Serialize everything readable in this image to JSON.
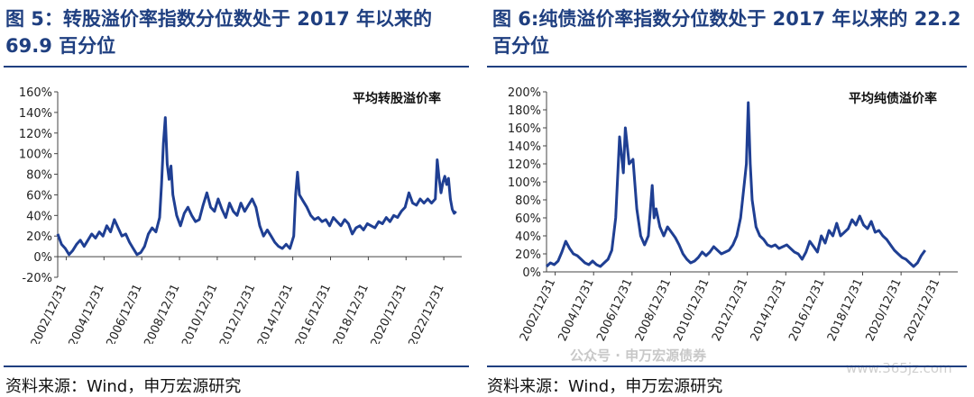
{
  "left": {
    "title_line1": "图 5：转股溢价率指数分位数处于 2017 年以来的",
    "title_line2": "69.9 百分位",
    "source": "资料来源：Wind，申万宏源研究"
  },
  "right": {
    "title_line1": "图 6:纯债溢价率指数分位数处于 2017 年以来的 22.2",
    "title_line2": "百分位",
    "source": "资料来源：Wind，申万宏源研究"
  },
  "watermark": {
    "text": "公众号 · 申万宏源债券",
    "site": "www.365jz.com"
  },
  "chart_data": [
    {
      "type": "line",
      "legend": "平均转股溢价率",
      "ylim": [
        -20,
        160
      ],
      "yticks": [
        -20,
        0,
        20,
        40,
        60,
        80,
        100,
        120,
        140,
        160
      ],
      "ytick_labels": [
        "-20%",
        "0%",
        "20%",
        "40%",
        "60%",
        "80%",
        "100%",
        "120%",
        "140%",
        "160%"
      ],
      "xlim": [
        2002.5,
        2023.9
      ],
      "xtick_labels": [
        "2002/12/31",
        "2004/12/31",
        "2006/12/31",
        "2008/12/31",
        "2010/12/31",
        "2012/12/31",
        "2014/12/31",
        "2016/12/31",
        "2018/12/31",
        "2020/12/31",
        "2022/12/31"
      ],
      "color": "#1f3f93",
      "series": [
        {
          "values": [
            [
              2002.5,
              22
            ],
            [
              2002.7,
              12
            ],
            [
              2002.9,
              8
            ],
            [
              2003.1,
              2
            ],
            [
              2003.3,
              6
            ],
            [
              2003.5,
              12
            ],
            [
              2003.7,
              16
            ],
            [
              2003.9,
              10
            ],
            [
              2004.1,
              16
            ],
            [
              2004.3,
              22
            ],
            [
              2004.5,
              18
            ],
            [
              2004.7,
              24
            ],
            [
              2004.9,
              20
            ],
            [
              2005.1,
              30
            ],
            [
              2005.3,
              24
            ],
            [
              2005.5,
              36
            ],
            [
              2005.7,
              28
            ],
            [
              2005.9,
              20
            ],
            [
              2006.1,
              22
            ],
            [
              2006.3,
              14
            ],
            [
              2006.5,
              8
            ],
            [
              2006.7,
              2
            ],
            [
              2006.9,
              4
            ],
            [
              2007.1,
              10
            ],
            [
              2007.3,
              22
            ],
            [
              2007.5,
              28
            ],
            [
              2007.7,
              24
            ],
            [
              2007.9,
              38
            ],
            [
              2008.0,
              70
            ],
            [
              2008.1,
              110
            ],
            [
              2008.2,
              135
            ],
            [
              2008.3,
              90
            ],
            [
              2008.4,
              75
            ],
            [
              2008.5,
              88
            ],
            [
              2008.6,
              60
            ],
            [
              2008.8,
              40
            ],
            [
              2009.0,
              30
            ],
            [
              2009.2,
              42
            ],
            [
              2009.4,
              48
            ],
            [
              2009.6,
              40
            ],
            [
              2009.8,
              34
            ],
            [
              2010.0,
              36
            ],
            [
              2010.2,
              50
            ],
            [
              2010.4,
              62
            ],
            [
              2010.6,
              48
            ],
            [
              2010.8,
              44
            ],
            [
              2011.0,
              56
            ],
            [
              2011.2,
              46
            ],
            [
              2011.4,
              38
            ],
            [
              2011.6,
              52
            ],
            [
              2011.8,
              44
            ],
            [
              2012.0,
              40
            ],
            [
              2012.2,
              52
            ],
            [
              2012.4,
              44
            ],
            [
              2012.6,
              50
            ],
            [
              2012.8,
              56
            ],
            [
              2013.0,
              48
            ],
            [
              2013.2,
              30
            ],
            [
              2013.4,
              20
            ],
            [
              2013.6,
              26
            ],
            [
              2013.8,
              20
            ],
            [
              2014.0,
              14
            ],
            [
              2014.2,
              10
            ],
            [
              2014.4,
              8
            ],
            [
              2014.6,
              12
            ],
            [
              2014.8,
              8
            ],
            [
              2015.0,
              20
            ],
            [
              2015.1,
              60
            ],
            [
              2015.2,
              82
            ],
            [
              2015.3,
              60
            ],
            [
              2015.5,
              54
            ],
            [
              2015.7,
              48
            ],
            [
              2015.9,
              40
            ],
            [
              2016.1,
              36
            ],
            [
              2016.3,
              38
            ],
            [
              2016.5,
              34
            ],
            [
              2016.7,
              36
            ],
            [
              2016.9,
              30
            ],
            [
              2017.1,
              38
            ],
            [
              2017.3,
              34
            ],
            [
              2017.5,
              30
            ],
            [
              2017.7,
              36
            ],
            [
              2017.9,
              32
            ],
            [
              2018.1,
              22
            ],
            [
              2018.3,
              28
            ],
            [
              2018.5,
              30
            ],
            [
              2018.7,
              26
            ],
            [
              2018.9,
              32
            ],
            [
              2019.1,
              30
            ],
            [
              2019.3,
              28
            ],
            [
              2019.5,
              34
            ],
            [
              2019.7,
              32
            ],
            [
              2019.9,
              38
            ],
            [
              2020.1,
              34
            ],
            [
              2020.3,
              40
            ],
            [
              2020.5,
              38
            ],
            [
              2020.7,
              44
            ],
            [
              2020.9,
              48
            ],
            [
              2021.1,
              62
            ],
            [
              2021.3,
              52
            ],
            [
              2021.5,
              50
            ],
            [
              2021.7,
              56
            ],
            [
              2021.9,
              52
            ],
            [
              2022.1,
              56
            ],
            [
              2022.3,
              52
            ],
            [
              2022.5,
              56
            ],
            [
              2022.6,
              94
            ],
            [
              2022.7,
              76
            ],
            [
              2022.8,
              62
            ],
            [
              2022.9,
              72
            ],
            [
              2023.0,
              78
            ],
            [
              2023.1,
              70
            ],
            [
              2023.2,
              76
            ],
            [
              2023.3,
              56
            ],
            [
              2023.4,
              46
            ],
            [
              2023.5,
              42
            ],
            [
              2023.6,
              44
            ]
          ]
        }
      ]
    },
    {
      "type": "line",
      "legend": "平均纯债溢价率",
      "ylim": [
        0,
        200
      ],
      "yticks": [
        0,
        20,
        40,
        60,
        80,
        100,
        120,
        140,
        160,
        180,
        200
      ],
      "ytick_labels": [
        "0%",
        "20%",
        "40%",
        "60%",
        "80%",
        "100%",
        "120%",
        "140%",
        "160%",
        "180%",
        "200%"
      ],
      "xlim": [
        2002.5,
        2023.9
      ],
      "xtick_labels": [
        "2002/12/31",
        "2004/12/31",
        "2006/12/31",
        "2008/12/31",
        "2010/12/31",
        "2012/12/31",
        "2014/12/31",
        "2016/12/31",
        "2018/12/31",
        "2020/12/31",
        "2022/12/31"
      ],
      "color": "#1f3f93",
      "series": [
        {
          "values": [
            [
              2002.5,
              6
            ],
            [
              2002.7,
              10
            ],
            [
              2002.9,
              8
            ],
            [
              2003.1,
              12
            ],
            [
              2003.3,
              22
            ],
            [
              2003.5,
              34
            ],
            [
              2003.7,
              26
            ],
            [
              2003.9,
              20
            ],
            [
              2004.1,
              18
            ],
            [
              2004.3,
              14
            ],
            [
              2004.5,
              10
            ],
            [
              2004.7,
              8
            ],
            [
              2004.9,
              12
            ],
            [
              2005.1,
              8
            ],
            [
              2005.3,
              6
            ],
            [
              2005.5,
              10
            ],
            [
              2005.7,
              14
            ],
            [
              2005.9,
              24
            ],
            [
              2006.1,
              60
            ],
            [
              2006.3,
              150
            ],
            [
              2006.5,
              110
            ],
            [
              2006.6,
              160
            ],
            [
              2006.8,
              120
            ],
            [
              2007.0,
              125
            ],
            [
              2007.2,
              70
            ],
            [
              2007.4,
              40
            ],
            [
              2007.6,
              30
            ],
            [
              2007.8,
              40
            ],
            [
              2008.0,
              96
            ],
            [
              2008.1,
              60
            ],
            [
              2008.2,
              70
            ],
            [
              2008.4,
              50
            ],
            [
              2008.6,
              40
            ],
            [
              2008.8,
              50
            ],
            [
              2009.0,
              44
            ],
            [
              2009.2,
              38
            ],
            [
              2009.4,
              30
            ],
            [
              2009.6,
              20
            ],
            [
              2009.8,
              14
            ],
            [
              2010.0,
              10
            ],
            [
              2010.2,
              12
            ],
            [
              2010.4,
              16
            ],
            [
              2010.6,
              22
            ],
            [
              2010.8,
              18
            ],
            [
              2011.0,
              22
            ],
            [
              2011.2,
              28
            ],
            [
              2011.4,
              24
            ],
            [
              2011.6,
              20
            ],
            [
              2011.8,
              22
            ],
            [
              2012.0,
              24
            ],
            [
              2012.2,
              30
            ],
            [
              2012.4,
              40
            ],
            [
              2012.6,
              60
            ],
            [
              2012.8,
              100
            ],
            [
              2012.9,
              120
            ],
            [
              2013.0,
              188
            ],
            [
              2013.1,
              120
            ],
            [
              2013.2,
              80
            ],
            [
              2013.4,
              50
            ],
            [
              2013.6,
              40
            ],
            [
              2013.8,
              36
            ],
            [
              2014.0,
              30
            ],
            [
              2014.2,
              28
            ],
            [
              2014.4,
              30
            ],
            [
              2014.6,
              26
            ],
            [
              2014.8,
              28
            ],
            [
              2015.0,
              30
            ],
            [
              2015.2,
              26
            ],
            [
              2015.4,
              22
            ],
            [
              2015.6,
              20
            ],
            [
              2015.8,
              14
            ],
            [
              2016.0,
              22
            ],
            [
              2016.2,
              34
            ],
            [
              2016.4,
              28
            ],
            [
              2016.6,
              22
            ],
            [
              2016.8,
              40
            ],
            [
              2017.0,
              32
            ],
            [
              2017.2,
              46
            ],
            [
              2017.4,
              40
            ],
            [
              2017.6,
              54
            ],
            [
              2017.8,
              40
            ],
            [
              2018.0,
              44
            ],
            [
              2018.2,
              48
            ],
            [
              2018.4,
              58
            ],
            [
              2018.6,
              52
            ],
            [
              2018.8,
              62
            ],
            [
              2019.0,
              52
            ],
            [
              2019.2,
              48
            ],
            [
              2019.4,
              56
            ],
            [
              2019.6,
              44
            ],
            [
              2019.8,
              46
            ],
            [
              2020.0,
              40
            ],
            [
              2020.2,
              36
            ],
            [
              2020.4,
              30
            ],
            [
              2020.6,
              24
            ],
            [
              2020.8,
              20
            ],
            [
              2021.0,
              16
            ],
            [
              2021.2,
              14
            ],
            [
              2021.4,
              10
            ],
            [
              2021.6,
              6
            ],
            [
              2021.8,
              10
            ],
            [
              2022.0,
              18
            ],
            [
              2022.2,
              24
            ]
          ]
        }
      ]
    }
  ]
}
